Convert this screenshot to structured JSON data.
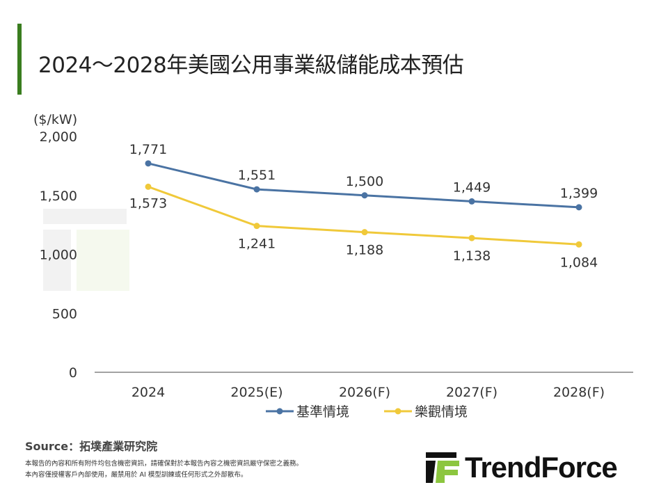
{
  "title": "2024～2028年美國公用事業級儲能成本預估",
  "source": "Source：拓墣產業研究院",
  "disclaimer": [
    "本報告的內容和所有附件均包含機密資訊，請確保對於本報告內容之機密資訊嚴守保密之義務。",
    "本內容僅授權客戶內部使用，嚴禁用於 AI 模型訓練或任何形式之外部散布。"
  ],
  "logo_text": "TrendForce",
  "watermark": "TrendForce",
  "chart_data": {
    "type": "line",
    "ylabel": "($/kW)",
    "ylim": [
      0,
      2000
    ],
    "yticks": [
      "0",
      "500",
      "1,000",
      "1,500",
      "2,000"
    ],
    "categories": [
      "2024",
      "2025(E)",
      "2026(F)",
      "2027(F)",
      "2028(F)"
    ],
    "series": [
      {
        "name": "基準情境",
        "values": [
          1771,
          1551,
          1500,
          1449,
          1399
        ],
        "labels": [
          "1,771",
          "1,551",
          "1,500",
          "1,449",
          "1,399"
        ],
        "color": "#4a73a3"
      },
      {
        "name": "樂觀情境",
        "values": [
          1573,
          1241,
          1188,
          1138,
          1084
        ],
        "labels": [
          "1,573",
          "1,241",
          "1,188",
          "1,138",
          "1,084"
        ],
        "color": "#f0c93a"
      }
    ],
    "grid": false,
    "legend": "bottom"
  }
}
